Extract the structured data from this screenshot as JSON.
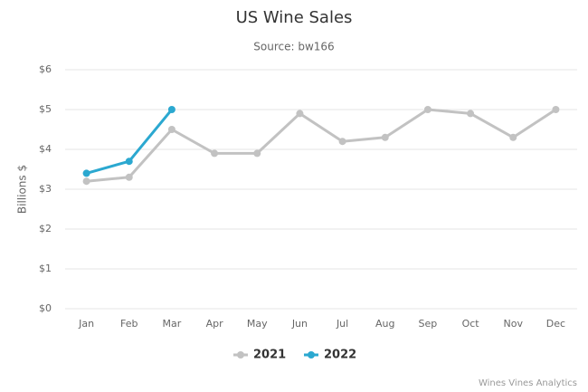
{
  "chart_data": {
    "type": "line",
    "title": "US Wine Sales",
    "subtitle": "Source: bw166",
    "y_label": "Billions $",
    "credits": "Wines Vines Analytics",
    "categories": [
      "Jan",
      "Feb",
      "Mar",
      "Apr",
      "May",
      "Jun",
      "Jul",
      "Aug",
      "Sep",
      "Oct",
      "Nov",
      "Dec"
    ],
    "series": [
      {
        "name": "2021",
        "color": "#c2c2c2",
        "values": [
          3.2,
          3.3,
          4.5,
          3.9,
          3.9,
          4.9,
          4.2,
          4.3,
          5.0,
          4.9,
          4.3,
          5.0
        ]
      },
      {
        "name": "2022",
        "color": "#2ba8d0",
        "values": [
          3.4,
          3.7,
          5.0,
          null,
          null,
          null,
          null,
          null,
          null,
          null,
          null,
          null
        ]
      }
    ],
    "ylim": [
      0,
      6
    ],
    "yticks": [
      {
        "value": 0,
        "label": "$0"
      },
      {
        "value": 1,
        "label": "$1"
      },
      {
        "value": 2,
        "label": "$2"
      },
      {
        "value": 3,
        "label": "$3"
      },
      {
        "value": 4,
        "label": "$4"
      },
      {
        "value": 5,
        "label": "$5"
      },
      {
        "value": 6,
        "label": "$6"
      }
    ],
    "grid": true,
    "legend": "bottom"
  }
}
